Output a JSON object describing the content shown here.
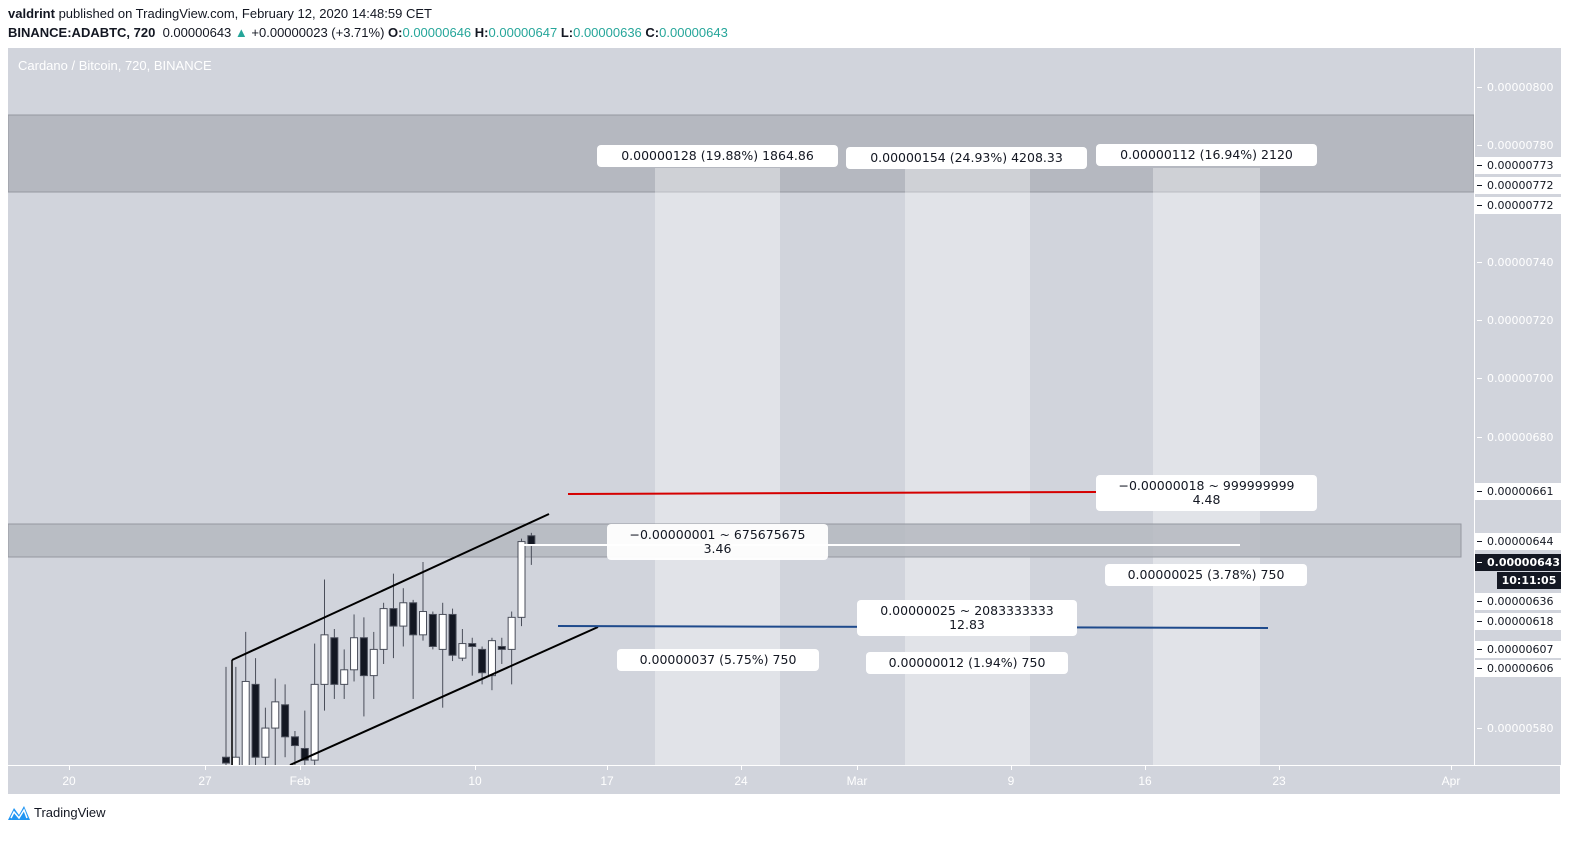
{
  "header": {
    "author": "valdrint",
    "published": " published on TradingView.com, February 12, 2020 14:48:59 CET",
    "symbol": "BINANCE:ADABTC, 720",
    "last": "0.00000643",
    "change": "+0.00000023 (+3.71%)",
    "o_label": "O:",
    "o": "0.00000646",
    "h_label": "H:",
    "h": "0.00000647",
    "l_label": "L:",
    "l": "0.00000636",
    "c_label": "C:",
    "c": "0.00000643",
    "up_icon": "triangle-up-icon",
    "up_color": "#26a69a"
  },
  "chart_title": "Cardano / Bitcoin, 720, BINANCE",
  "price_axis": [
    {
      "v": "0.00000800",
      "t": "n"
    },
    {
      "v": "0.00000780",
      "t": "n"
    },
    {
      "v": "0.00000773",
      "t": "hl"
    },
    {
      "v": "0.00000772",
      "t": "hl"
    },
    {
      "v": "0.00000772",
      "t": "hl"
    },
    {
      "v": "0.00000740",
      "t": "n"
    },
    {
      "v": "0.00000720",
      "t": "n"
    },
    {
      "v": "0.00000700",
      "t": "n"
    },
    {
      "v": "0.00000680",
      "t": "n"
    },
    {
      "v": "0.00000661",
      "t": "hl"
    },
    {
      "v": "0.00000644",
      "t": "hl"
    },
    {
      "v": "0.00000643",
      "t": "cur"
    },
    {
      "v": "0.00000636",
      "t": "hl"
    },
    {
      "v": "0.00000618",
      "t": "hl"
    },
    {
      "v": "0.00000607",
      "t": "hl"
    },
    {
      "v": "0.00000606",
      "t": "hl"
    },
    {
      "v": "0.00000580",
      "t": "n"
    }
  ],
  "countdown": "10:11:05",
  "time_axis": [
    "20",
    "27",
    "Feb",
    "10",
    "17",
    "24",
    "Mar",
    "9",
    "16",
    "23",
    "Apr"
  ],
  "labels": {
    "top1": "0.00000128 (19.88%) 1864.86",
    "top2": "0.00000154 (24.93%) 4208.33",
    "top3": "0.00000112 (16.94%) 2120",
    "red1": "−0.00000018 ~ 999999999",
    "red2": "4.48",
    "white1": "−0.00000001 ~ 675675675",
    "white2": "3.46",
    "r_mid": "0.00000025 (3.78%) 750",
    "blue1": "0.00000025 ~ 2083333333",
    "blue2": "12.83",
    "b_left": "0.00000037 (5.75%) 750",
    "b_mid": "0.00000012 (1.94%) 750"
  },
  "colors": {
    "red_line": "#d50000",
    "blue_line": "#1e4a8c",
    "white_line": "#ffffff",
    "bg": "#d1d4dc"
  },
  "chart_data": {
    "type": "candlestick",
    "interval": "720",
    "first_candle": "2020-01-28 00:00",
    "ohlc": [
      [
        570,
        601,
        560,
        568
      ],
      [
        565,
        601,
        560,
        570
      ],
      [
        565,
        613,
        560,
        596
      ],
      [
        595,
        604,
        565,
        570
      ],
      [
        570,
        587,
        566,
        580
      ],
      [
        580,
        597,
        566,
        589
      ],
      [
        588,
        595,
        570,
        577
      ],
      [
        577,
        579,
        566,
        574
      ],
      [
        573,
        586,
        566,
        569
      ],
      [
        569,
        609,
        567,
        595
      ],
      [
        595,
        631,
        586,
        612
      ],
      [
        611,
        614,
        590,
        595
      ],
      [
        595,
        607,
        590,
        600
      ],
      [
        600,
        619,
        596,
        611
      ],
      [
        611,
        618,
        584,
        598
      ],
      [
        598,
        613,
        590,
        607
      ],
      [
        607,
        623,
        602,
        621
      ],
      [
        621,
        633,
        604,
        615
      ],
      [
        615,
        628,
        608,
        623
      ],
      [
        623,
        624,
        590,
        612
      ],
      [
        612,
        637,
        610,
        620
      ],
      [
        619,
        620,
        607,
        608
      ],
      [
        607,
        623,
        587,
        619
      ],
      [
        619,
        621,
        603,
        605
      ],
      [
        604,
        614,
        603,
        609
      ],
      [
        609,
        611,
        598,
        608
      ],
      [
        607,
        608,
        595,
        599
      ],
      [
        598,
        611,
        593,
        610
      ],
      [
        608,
        611,
        602,
        607
      ],
      [
        607,
        620,
        595,
        618
      ],
      [
        618,
        645,
        615,
        644
      ],
      [
        646,
        647,
        636,
        643
      ]
    ],
    "ohlc_unit": "0.00000001"
  },
  "footer": {
    "brand": "TradingView",
    "logo_icon": "tradingview-logo-icon"
  }
}
